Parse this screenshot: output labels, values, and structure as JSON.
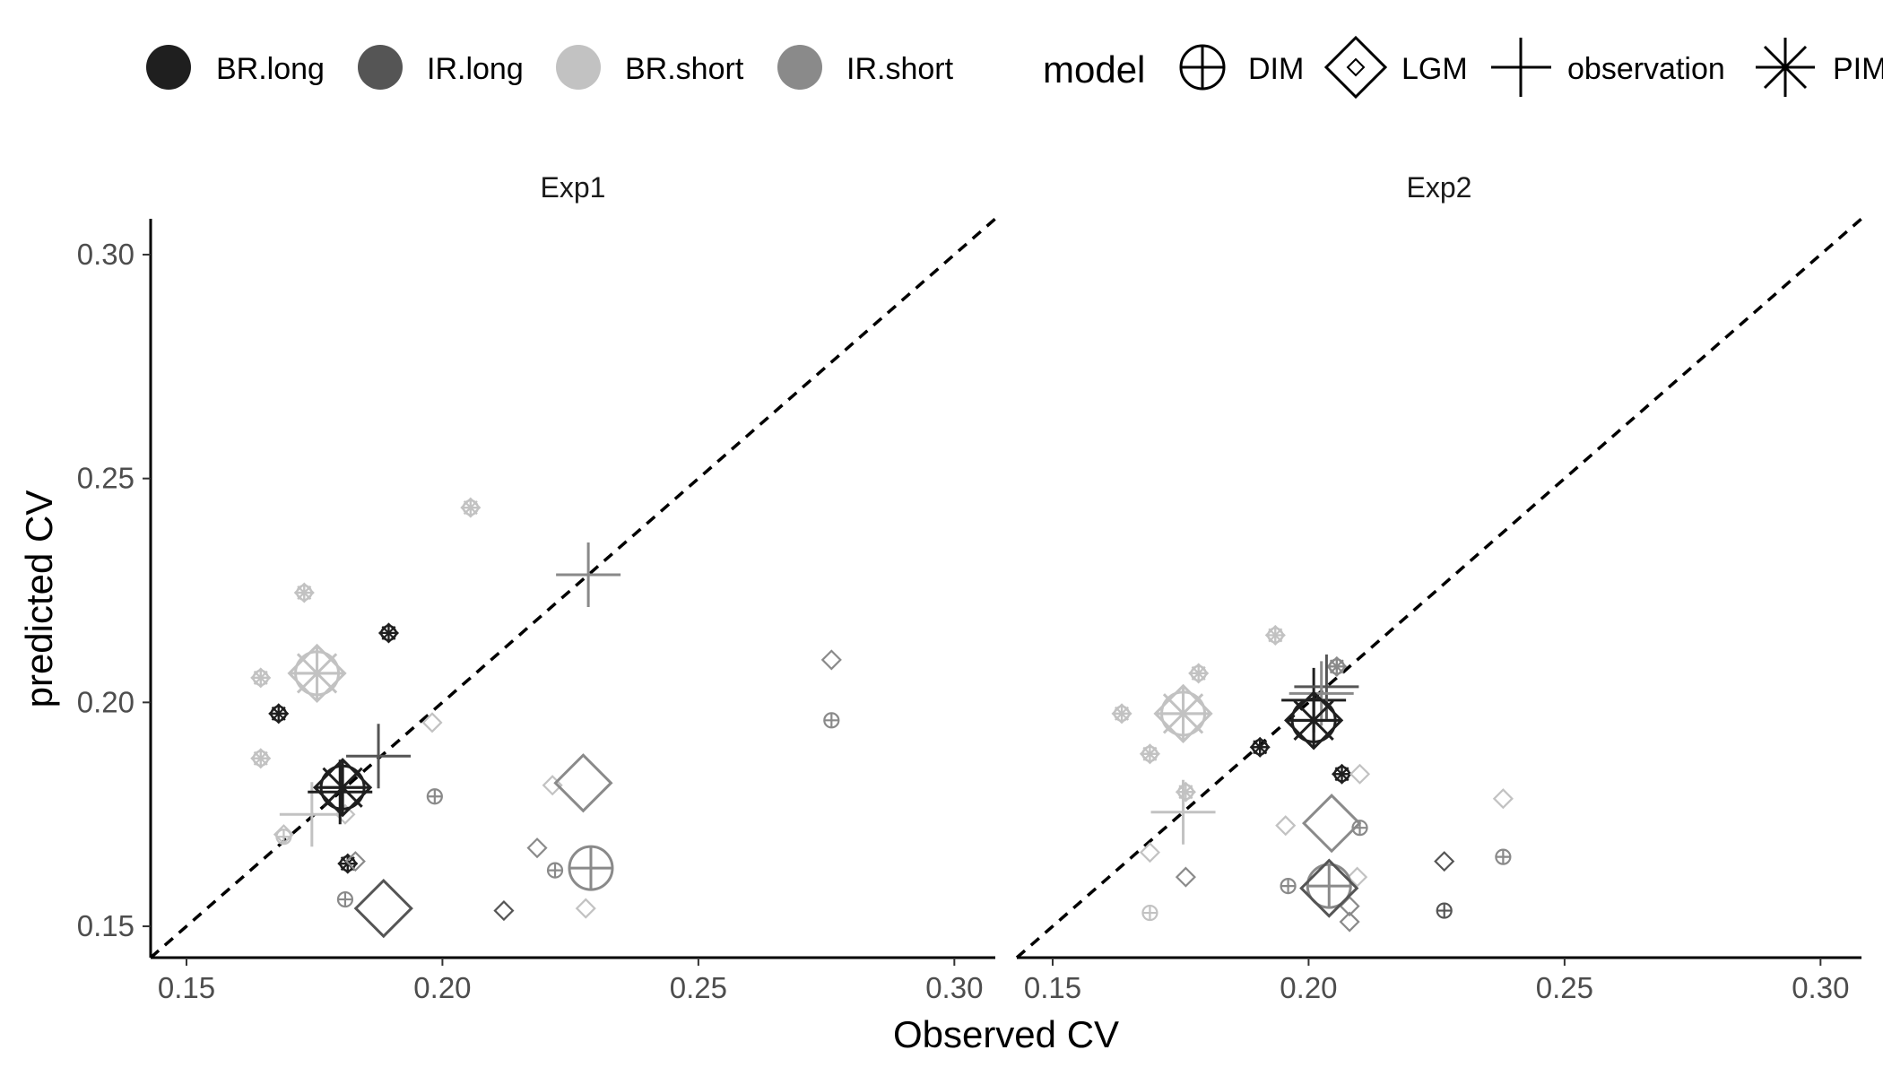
{
  "chart_data": {
    "type": "scatter",
    "xlabel": "Observed CV",
    "ylabel": "predicted CV",
    "xlim": [
      0.143,
      0.308
    ],
    "ylim": [
      0.143,
      0.308
    ],
    "x_ticks": [
      "0.15",
      "0.20",
      "0.25",
      "0.30"
    ],
    "y_ticks": [
      "0.15",
      "0.20",
      "0.25",
      "0.30"
    ],
    "identity_line": "dashed y = x",
    "grid": false,
    "legend_position": "top",
    "legend": {
      "conditions": [
        {
          "name": "BR.long",
          "color": "#1f1f1f"
        },
        {
          "name": "IR.long",
          "color": "#555555"
        },
        {
          "name": "BR.short",
          "color": "#c2c2c2"
        },
        {
          "name": "IR.short",
          "color": "#8a8a8a"
        }
      ],
      "model_title": "model",
      "models": [
        "DIM",
        "LGM",
        "observation",
        "PIM"
      ]
    },
    "panels": [
      {
        "title": "Exp1",
        "points": [
          {
            "x": 0.1875,
            "y": 0.188,
            "model": "observation",
            "cond": "IR.long",
            "size": "large"
          },
          {
            "x": 0.2285,
            "y": 0.2285,
            "model": "observation",
            "cond": "IR.short",
            "size": "large"
          },
          {
            "x": 0.1745,
            "y": 0.175,
            "model": "observation",
            "cond": "BR.short",
            "size": "large"
          },
          {
            "x": 0.18,
            "y": 0.18,
            "model": "observation",
            "cond": "BR.long",
            "size": "large"
          },
          {
            "x": 0.1805,
            "y": 0.181,
            "model": "DIM",
            "cond": "BR.long",
            "size": "large"
          },
          {
            "x": 0.1805,
            "y": 0.181,
            "model": "LGM",
            "cond": "BR.long",
            "size": "large"
          },
          {
            "x": 0.1805,
            "y": 0.181,
            "model": "PIM",
            "cond": "BR.long",
            "size": "large"
          },
          {
            "x": 0.1755,
            "y": 0.2065,
            "model": "DIM",
            "cond": "BR.short",
            "size": "large"
          },
          {
            "x": 0.1755,
            "y": 0.2065,
            "model": "LGM",
            "cond": "BR.short",
            "size": "large"
          },
          {
            "x": 0.1755,
            "y": 0.2065,
            "model": "PIM",
            "cond": "BR.short",
            "size": "large"
          },
          {
            "x": 0.1885,
            "y": 0.154,
            "model": "LGM",
            "cond": "IR.long",
            "size": "large"
          },
          {
            "x": 0.229,
            "y": 0.163,
            "model": "DIM",
            "cond": "IR.short",
            "size": "large"
          },
          {
            "x": 0.2275,
            "y": 0.182,
            "model": "LGM",
            "cond": "IR.short",
            "size": "large"
          },
          {
            "x": 0.173,
            "y": 0.2245,
            "model": "DIM",
            "cond": "BR.short",
            "size": "small"
          },
          {
            "x": 0.173,
            "y": 0.2245,
            "model": "LGM",
            "cond": "BR.short",
            "size": "small"
          },
          {
            "x": 0.173,
            "y": 0.2245,
            "model": "PIM",
            "cond": "BR.short",
            "size": "small"
          },
          {
            "x": 0.2055,
            "y": 0.2435,
            "model": "DIM",
            "cond": "BR.short",
            "size": "small"
          },
          {
            "x": 0.2055,
            "y": 0.2435,
            "model": "LGM",
            "cond": "BR.short",
            "size": "small"
          },
          {
            "x": 0.2055,
            "y": 0.2435,
            "model": "PIM",
            "cond": "BR.short",
            "size": "small"
          },
          {
            "x": 0.1645,
            "y": 0.2055,
            "model": "DIM",
            "cond": "BR.short",
            "size": "small"
          },
          {
            "x": 0.1645,
            "y": 0.2055,
            "model": "LGM",
            "cond": "BR.short",
            "size": "small"
          },
          {
            "x": 0.1645,
            "y": 0.2055,
            "model": "PIM",
            "cond": "BR.short",
            "size": "small"
          },
          {
            "x": 0.1645,
            "y": 0.1875,
            "model": "DIM",
            "cond": "BR.short",
            "size": "small"
          },
          {
            "x": 0.1645,
            "y": 0.1875,
            "model": "LGM",
            "cond": "BR.short",
            "size": "small"
          },
          {
            "x": 0.1645,
            "y": 0.1875,
            "model": "PIM",
            "cond": "BR.short",
            "size": "small"
          },
          {
            "x": 0.168,
            "y": 0.1975,
            "model": "DIM",
            "cond": "BR.long",
            "size": "small"
          },
          {
            "x": 0.168,
            "y": 0.1975,
            "model": "LGM",
            "cond": "BR.long",
            "size": "small"
          },
          {
            "x": 0.168,
            "y": 0.1975,
            "model": "PIM",
            "cond": "BR.long",
            "size": "small"
          },
          {
            "x": 0.1895,
            "y": 0.2155,
            "model": "DIM",
            "cond": "BR.long",
            "size": "small"
          },
          {
            "x": 0.1895,
            "y": 0.2155,
            "model": "LGM",
            "cond": "BR.long",
            "size": "small"
          },
          {
            "x": 0.1895,
            "y": 0.2155,
            "model": "PIM",
            "cond": "BR.long",
            "size": "small"
          },
          {
            "x": 0.1815,
            "y": 0.164,
            "model": "DIM",
            "cond": "BR.long",
            "size": "small"
          },
          {
            "x": 0.1815,
            "y": 0.164,
            "model": "LGM",
            "cond": "BR.long",
            "size": "small"
          },
          {
            "x": 0.1815,
            "y": 0.164,
            "model": "PIM",
            "cond": "BR.long",
            "size": "small"
          },
          {
            "x": 0.183,
            "y": 0.1645,
            "model": "LGM",
            "cond": "IR.short",
            "size": "small"
          },
          {
            "x": 0.181,
            "y": 0.156,
            "model": "DIM",
            "cond": "IR.short",
            "size": "small"
          },
          {
            "x": 0.169,
            "y": 0.1705,
            "model": "LGM",
            "cond": "BR.short",
            "size": "small"
          },
          {
            "x": 0.169,
            "y": 0.17,
            "model": "DIM",
            "cond": "BR.short",
            "size": "small"
          },
          {
            "x": 0.181,
            "y": 0.175,
            "model": "LGM",
            "cond": "BR.short",
            "size": "small"
          },
          {
            "x": 0.198,
            "y": 0.1955,
            "model": "LGM",
            "cond": "BR.short",
            "size": "small"
          },
          {
            "x": 0.1985,
            "y": 0.179,
            "model": "DIM",
            "cond": "IR.short",
            "size": "small"
          },
          {
            "x": 0.212,
            "y": 0.1535,
            "model": "LGM",
            "cond": "IR.long",
            "size": "small"
          },
          {
            "x": 0.2185,
            "y": 0.1675,
            "model": "LGM",
            "cond": "IR.short",
            "size": "small"
          },
          {
            "x": 0.2215,
            "y": 0.1815,
            "model": "LGM",
            "cond": "BR.short",
            "size": "small"
          },
          {
            "x": 0.222,
            "y": 0.1625,
            "model": "DIM",
            "cond": "IR.short",
            "size": "small"
          },
          {
            "x": 0.228,
            "y": 0.154,
            "model": "LGM",
            "cond": "BR.short",
            "size": "small"
          },
          {
            "x": 0.276,
            "y": 0.2095,
            "model": "LGM",
            "cond": "IR.short",
            "size": "small"
          },
          {
            "x": 0.276,
            "y": 0.196,
            "model": "DIM",
            "cond": "IR.short",
            "size": "small"
          }
        ]
      },
      {
        "title": "Exp2",
        "points": [
          {
            "x": 0.1755,
            "y": 0.1755,
            "model": "observation",
            "cond": "BR.short",
            "size": "large"
          },
          {
            "x": 0.201,
            "y": 0.2005,
            "model": "observation",
            "cond": "BR.long",
            "size": "large"
          },
          {
            "x": 0.2035,
            "y": 0.2035,
            "model": "observation",
            "cond": "IR.long",
            "size": "large"
          },
          {
            "x": 0.2025,
            "y": 0.202,
            "model": "observation",
            "cond": "IR.short",
            "size": "large"
          },
          {
            "x": 0.201,
            "y": 0.196,
            "model": "DIM",
            "cond": "BR.long",
            "size": "large"
          },
          {
            "x": 0.201,
            "y": 0.196,
            "model": "LGM",
            "cond": "BR.long",
            "size": "large"
          },
          {
            "x": 0.201,
            "y": 0.196,
            "model": "PIM",
            "cond": "BR.long",
            "size": "large"
          },
          {
            "x": 0.1755,
            "y": 0.1975,
            "model": "DIM",
            "cond": "BR.short",
            "size": "large"
          },
          {
            "x": 0.1755,
            "y": 0.1975,
            "model": "LGM",
            "cond": "BR.short",
            "size": "large"
          },
          {
            "x": 0.1755,
            "y": 0.1975,
            "model": "PIM",
            "cond": "BR.short",
            "size": "large"
          },
          {
            "x": 0.2045,
            "y": 0.173,
            "model": "LGM",
            "cond": "IR.short",
            "size": "large"
          },
          {
            "x": 0.204,
            "y": 0.159,
            "model": "DIM",
            "cond": "IR.short",
            "size": "large"
          },
          {
            "x": 0.204,
            "y": 0.1585,
            "model": "LGM",
            "cond": "IR.long",
            "size": "large"
          },
          {
            "x": 0.1635,
            "y": 0.1975,
            "model": "DIM",
            "cond": "BR.short",
            "size": "small"
          },
          {
            "x": 0.1635,
            "y": 0.1975,
            "model": "LGM",
            "cond": "BR.short",
            "size": "small"
          },
          {
            "x": 0.1635,
            "y": 0.1975,
            "model": "PIM",
            "cond": "BR.short",
            "size": "small"
          },
          {
            "x": 0.169,
            "y": 0.1885,
            "model": "DIM",
            "cond": "BR.short",
            "size": "small"
          },
          {
            "x": 0.169,
            "y": 0.1885,
            "model": "LGM",
            "cond": "BR.short",
            "size": "small"
          },
          {
            "x": 0.169,
            "y": 0.1885,
            "model": "PIM",
            "cond": "BR.short",
            "size": "small"
          },
          {
            "x": 0.1935,
            "y": 0.215,
            "model": "DIM",
            "cond": "BR.short",
            "size": "small"
          },
          {
            "x": 0.1935,
            "y": 0.215,
            "model": "LGM",
            "cond": "BR.short",
            "size": "small"
          },
          {
            "x": 0.1935,
            "y": 0.215,
            "model": "PIM",
            "cond": "BR.short",
            "size": "small"
          },
          {
            "x": 0.1785,
            "y": 0.2065,
            "model": "DIM",
            "cond": "BR.short",
            "size": "small"
          },
          {
            "x": 0.1785,
            "y": 0.2065,
            "model": "LGM",
            "cond": "BR.short",
            "size": "small"
          },
          {
            "x": 0.1785,
            "y": 0.2065,
            "model": "PIM",
            "cond": "BR.short",
            "size": "small"
          },
          {
            "x": 0.176,
            "y": 0.18,
            "model": "DIM",
            "cond": "BR.short",
            "size": "small"
          },
          {
            "x": 0.176,
            "y": 0.18,
            "model": "LGM",
            "cond": "BR.short",
            "size": "small"
          },
          {
            "x": 0.176,
            "y": 0.18,
            "model": "PIM",
            "cond": "BR.short",
            "size": "small"
          },
          {
            "x": 0.1905,
            "y": 0.19,
            "model": "DIM",
            "cond": "BR.long",
            "size": "small"
          },
          {
            "x": 0.1905,
            "y": 0.19,
            "model": "LGM",
            "cond": "BR.long",
            "size": "small"
          },
          {
            "x": 0.1905,
            "y": 0.19,
            "model": "PIM",
            "cond": "BR.long",
            "size": "small"
          },
          {
            "x": 0.2065,
            "y": 0.184,
            "model": "DIM",
            "cond": "BR.long",
            "size": "small"
          },
          {
            "x": 0.2065,
            "y": 0.184,
            "model": "LGM",
            "cond": "BR.long",
            "size": "small"
          },
          {
            "x": 0.2065,
            "y": 0.184,
            "model": "PIM",
            "cond": "BR.long",
            "size": "small"
          },
          {
            "x": 0.2055,
            "y": 0.208,
            "model": "DIM",
            "cond": "IR.short",
            "size": "small"
          },
          {
            "x": 0.2055,
            "y": 0.208,
            "model": "LGM",
            "cond": "IR.short",
            "size": "small"
          },
          {
            "x": 0.2055,
            "y": 0.208,
            "model": "PIM",
            "cond": "IR.short",
            "size": "small"
          },
          {
            "x": 0.169,
            "y": 0.1665,
            "model": "LGM",
            "cond": "BR.short",
            "size": "small"
          },
          {
            "x": 0.169,
            "y": 0.153,
            "model": "DIM",
            "cond": "BR.short",
            "size": "small"
          },
          {
            "x": 0.176,
            "y": 0.161,
            "model": "LGM",
            "cond": "IR.short",
            "size": "small"
          },
          {
            "x": 0.1955,
            "y": 0.1725,
            "model": "LGM",
            "cond": "BR.short",
            "size": "small"
          },
          {
            "x": 0.196,
            "y": 0.159,
            "model": "DIM",
            "cond": "IR.short",
            "size": "small"
          },
          {
            "x": 0.208,
            "y": 0.1545,
            "model": "LGM",
            "cond": "IR.short",
            "size": "small"
          },
          {
            "x": 0.208,
            "y": 0.151,
            "model": "LGM",
            "cond": "IR.short",
            "size": "small"
          },
          {
            "x": 0.2095,
            "y": 0.161,
            "model": "LGM",
            "cond": "BR.short",
            "size": "small"
          },
          {
            "x": 0.21,
            "y": 0.172,
            "model": "DIM",
            "cond": "IR.short",
            "size": "small"
          },
          {
            "x": 0.21,
            "y": 0.184,
            "model": "LGM",
            "cond": "BR.short",
            "size": "small"
          },
          {
            "x": 0.2265,
            "y": 0.1645,
            "model": "LGM",
            "cond": "IR.long",
            "size": "small"
          },
          {
            "x": 0.2265,
            "y": 0.1535,
            "model": "DIM",
            "cond": "IR.long",
            "size": "small"
          },
          {
            "x": 0.238,
            "y": 0.1785,
            "model": "LGM",
            "cond": "BR.short",
            "size": "small"
          },
          {
            "x": 0.238,
            "y": 0.1655,
            "model": "DIM",
            "cond": "IR.short",
            "size": "small"
          }
        ]
      }
    ]
  }
}
